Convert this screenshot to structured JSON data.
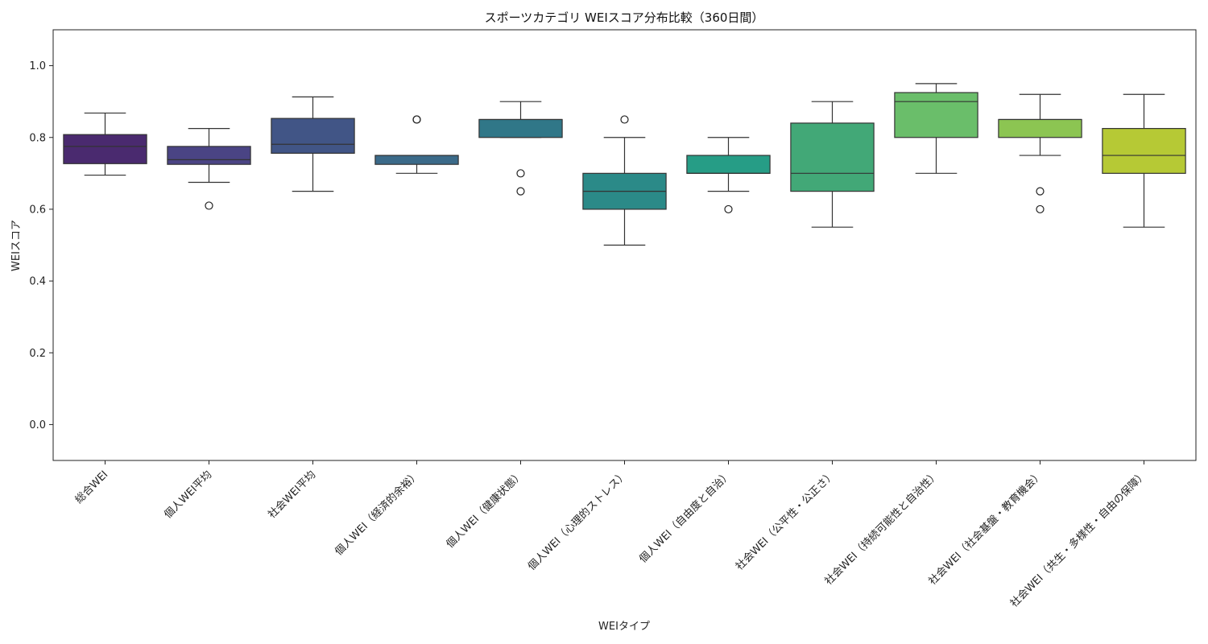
{
  "chart_data": {
    "type": "box",
    "title": "スポーツカテゴリ WEIスコア分布比較（360日間）",
    "xlabel": "WEIタイプ",
    "ylabel": "WEIスコア",
    "ylim": [
      -0.1,
      1.1
    ],
    "yticks": [
      "0.0",
      "0.2",
      "0.4",
      "0.6",
      "0.8",
      "1.0"
    ],
    "grid": false,
    "categories": [
      "総合WEI",
      "個人WEI平均",
      "社会WEI平均",
      "個人WEI（経済的余裕）",
      "個人WEI（健康状態）",
      "個人WEI（心理的ストレス）",
      "個人WEI（自由度と自治）",
      "社会WEI（公平性・公正さ）",
      "社会WEI（持続可能性と自治性）",
      "社会WEI（社会基盤・教育機会）",
      "社会WEI（共生・多様性・自由の保障）"
    ],
    "boxes": [
      {
        "whisker_low": 0.695,
        "q1": 0.727,
        "median": 0.775,
        "q3": 0.808,
        "whisker_high": 0.868,
        "outliers": [],
        "color": "#4a2a6f"
      },
      {
        "whisker_low": 0.675,
        "q1": 0.725,
        "median": 0.738,
        "q3": 0.775,
        "whisker_high": 0.825,
        "outliers": [
          0.61
        ],
        "color": "#4a4484"
      },
      {
        "whisker_low": 0.65,
        "q1": 0.756,
        "median": 0.781,
        "q3": 0.853,
        "whisker_high": 0.913,
        "outliers": [],
        "color": "#415586"
      },
      {
        "whisker_low": 0.7,
        "q1": 0.725,
        "median": 0.75,
        "q3": 0.75,
        "whisker_high": 0.75,
        "outliers": [
          0.85,
          0.85
        ],
        "color": "#3b6a89"
      },
      {
        "whisker_low": 0.8,
        "q1": 0.8,
        "median": 0.85,
        "q3": 0.85,
        "whisker_high": 0.9,
        "outliers": [
          0.7,
          0.65
        ],
        "color": "#307788"
      },
      {
        "whisker_low": 0.5,
        "q1": 0.6,
        "median": 0.65,
        "q3": 0.7,
        "whisker_high": 0.8,
        "outliers": [
          0.85
        ],
        "color": "#2b8a88"
      },
      {
        "whisker_low": 0.65,
        "q1": 0.7,
        "median": 0.7,
        "q3": 0.75,
        "whisker_high": 0.8,
        "outliers": [
          0.6
        ],
        "color": "#269d86"
      },
      {
        "whisker_low": 0.55,
        "q1": 0.65,
        "median": 0.7,
        "q3": 0.84,
        "whisker_high": 0.9,
        "outliers": [],
        "color": "#42a877"
      },
      {
        "whisker_low": 0.7,
        "q1": 0.8,
        "median": 0.9,
        "q3": 0.925,
        "whisker_high": 0.95,
        "outliers": [],
        "color": "#6abe6a"
      },
      {
        "whisker_low": 0.75,
        "q1": 0.8,
        "median": 0.85,
        "q3": 0.85,
        "whisker_high": 0.92,
        "outliers": [
          0.65,
          0.6
        ],
        "color": "#8cc552"
      },
      {
        "whisker_low": 0.55,
        "q1": 0.7,
        "median": 0.75,
        "q3": 0.825,
        "whisker_high": 0.92,
        "outliers": [],
        "color": "#b6c935"
      }
    ]
  }
}
